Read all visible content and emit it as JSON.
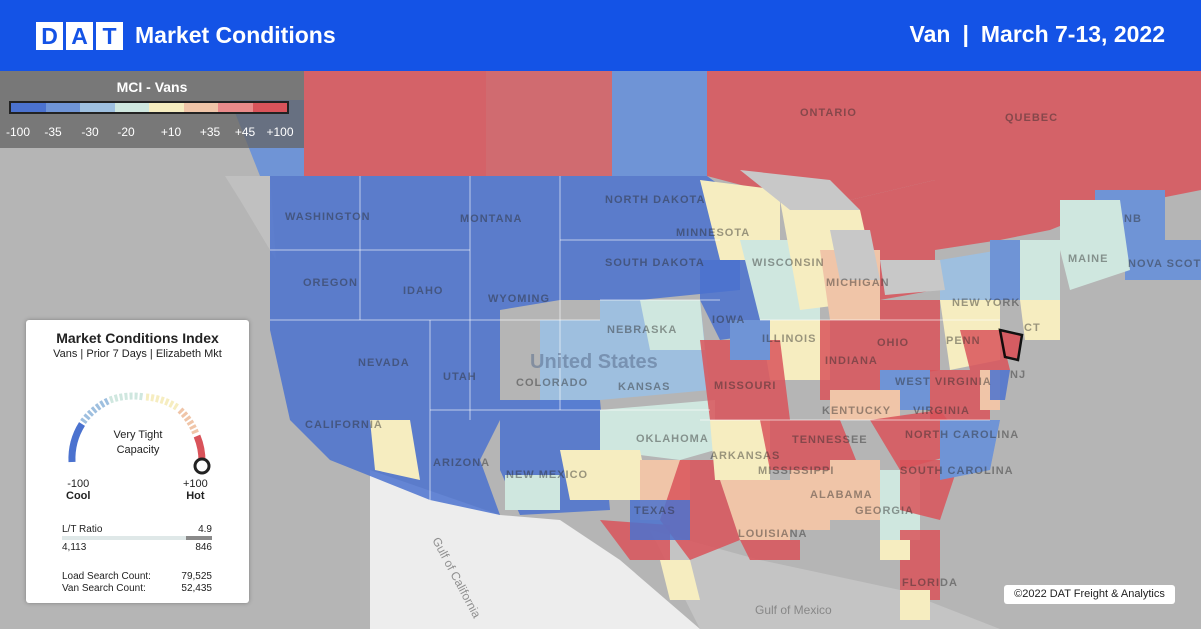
{
  "header": {
    "logo_letters": [
      "D",
      "A",
      "T"
    ],
    "title": "Market Conditions",
    "equipment": "Van",
    "separator": "|",
    "date_range": "March 7-13, 2022",
    "background_color": "#1453e6"
  },
  "legend": {
    "title": "MCI - Vans",
    "ticks": [
      "-100",
      "-35",
      "-30",
      "-20",
      "+10",
      "+35",
      "+45",
      "+100"
    ],
    "colors": [
      "#4b72cf",
      "#6f94d6",
      "#9ebfdf",
      "#cfe7df",
      "#f6edc0",
      "#f0c5a8",
      "#e98a8a",
      "#d9535a"
    ]
  },
  "index_card": {
    "title": "Market Conditions Index",
    "subtitle": "Vans | Prior 7 Days | Elizabeth Mkt",
    "gauge_status": "Very Tight Capacity",
    "gauge_value": 100,
    "gauge_min": "-100",
    "gauge_min_label": "Cool",
    "gauge_max": "+100",
    "gauge_max_label": "Hot",
    "lt_ratio_label": "L/T Ratio",
    "lt_ratio_value": "4.9",
    "lt_loads": "4,113",
    "lt_trucks": "846",
    "load_search_label": "Load Search Count:",
    "load_search_value": "79,525",
    "van_search_label": "Van Search Count:",
    "van_search_value": "52,435"
  },
  "map": {
    "labels": [
      "WASHINGTON",
      "OREGON",
      "CALIFORNIA",
      "NEVADA",
      "IDAHO",
      "MONTANA",
      "WYOMING",
      "UTAH",
      "ARIZONA",
      "COLORADO",
      "NEW MEXICO",
      "NORTH DAKOTA",
      "SOUTH DAKOTA",
      "NEBRASKA",
      "KANSAS",
      "OKLAHOMA",
      "TEXAS",
      "MINNESOTA",
      "IOWA",
      "MISSOURI",
      "ARKANSAS",
      "LOUISIANA",
      "WISCONSIN",
      "ILLINOIS",
      "MICHIGAN",
      "INDIANA",
      "OHIO",
      "KENTUCKY",
      "TENNESSEE",
      "MISSISSIPPI",
      "ALABAMA",
      "GEORGIA",
      "FLORIDA",
      "SOUTH CAROLINA",
      "NORTH CAROLINA",
      "VIRGINIA",
      "WEST VIRGINIA",
      "PENN",
      "NEW YORK",
      "MAINE",
      "NB",
      "NOVA SCOTIA",
      "ONTARIO",
      "QUEBEC",
      "CT",
      "NJ",
      "United States",
      "Gulf of California",
      "Gulf of Mexico"
    ],
    "copyright": "©2022 DAT Freight & Analytics"
  }
}
